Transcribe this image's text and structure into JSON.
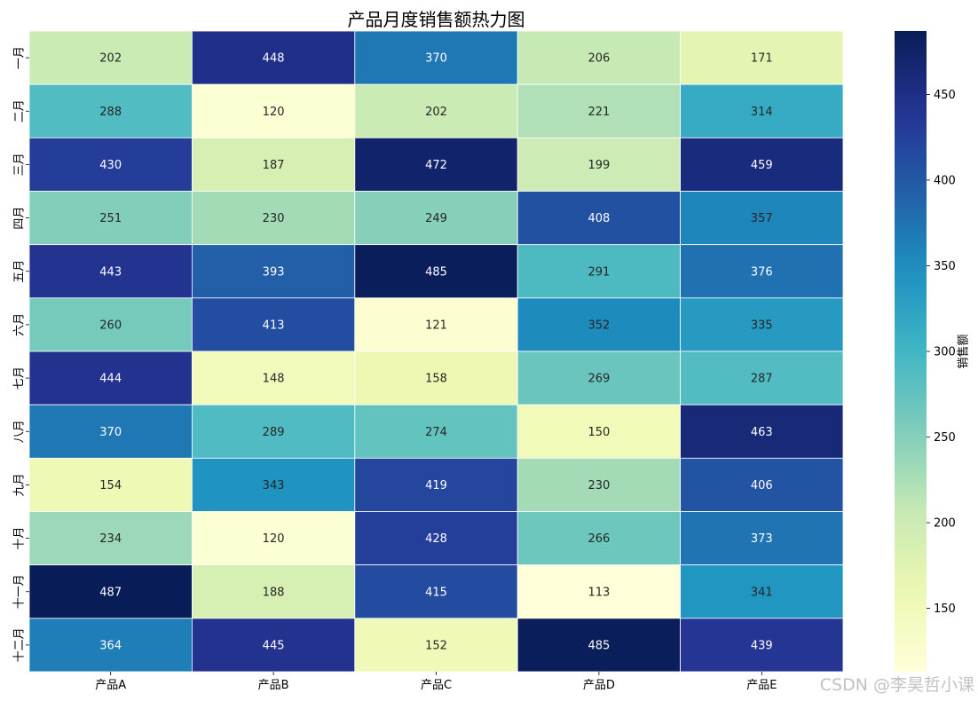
{
  "chart_data": {
    "type": "heatmap",
    "title": "产品月度销售额热力图",
    "columns": [
      "产品A",
      "产品B",
      "产品C",
      "产品D",
      "产品E"
    ],
    "rows": [
      "一月",
      "二月",
      "三月",
      "四月",
      "五月",
      "六月",
      "七月",
      "八月",
      "九月",
      "十月",
      "十一月",
      "十二月"
    ],
    "values": [
      [
        202,
        448,
        370,
        206,
        171
      ],
      [
        288,
        120,
        202,
        221,
        314
      ],
      [
        430,
        187,
        472,
        199,
        459
      ],
      [
        251,
        230,
        249,
        408,
        357
      ],
      [
        443,
        393,
        485,
        291,
        376
      ],
      [
        260,
        413,
        121,
        352,
        335
      ],
      [
        444,
        148,
        158,
        269,
        287
      ],
      [
        370,
        289,
        274,
        150,
        463
      ],
      [
        154,
        343,
        419,
        230,
        406
      ],
      [
        234,
        120,
        428,
        266,
        373
      ],
      [
        487,
        188,
        415,
        113,
        341
      ],
      [
        364,
        445,
        152,
        485,
        439
      ]
    ],
    "colormap": "YlGnBu",
    "colorbar": {
      "label": "销售额",
      "range": [
        113,
        487
      ],
      "ticks": [
        150,
        200,
        250,
        300,
        350,
        400,
        450
      ]
    },
    "annotations": true,
    "gridline_color": "#ffffff"
  },
  "watermark": "CSDN @李昊哲小课"
}
